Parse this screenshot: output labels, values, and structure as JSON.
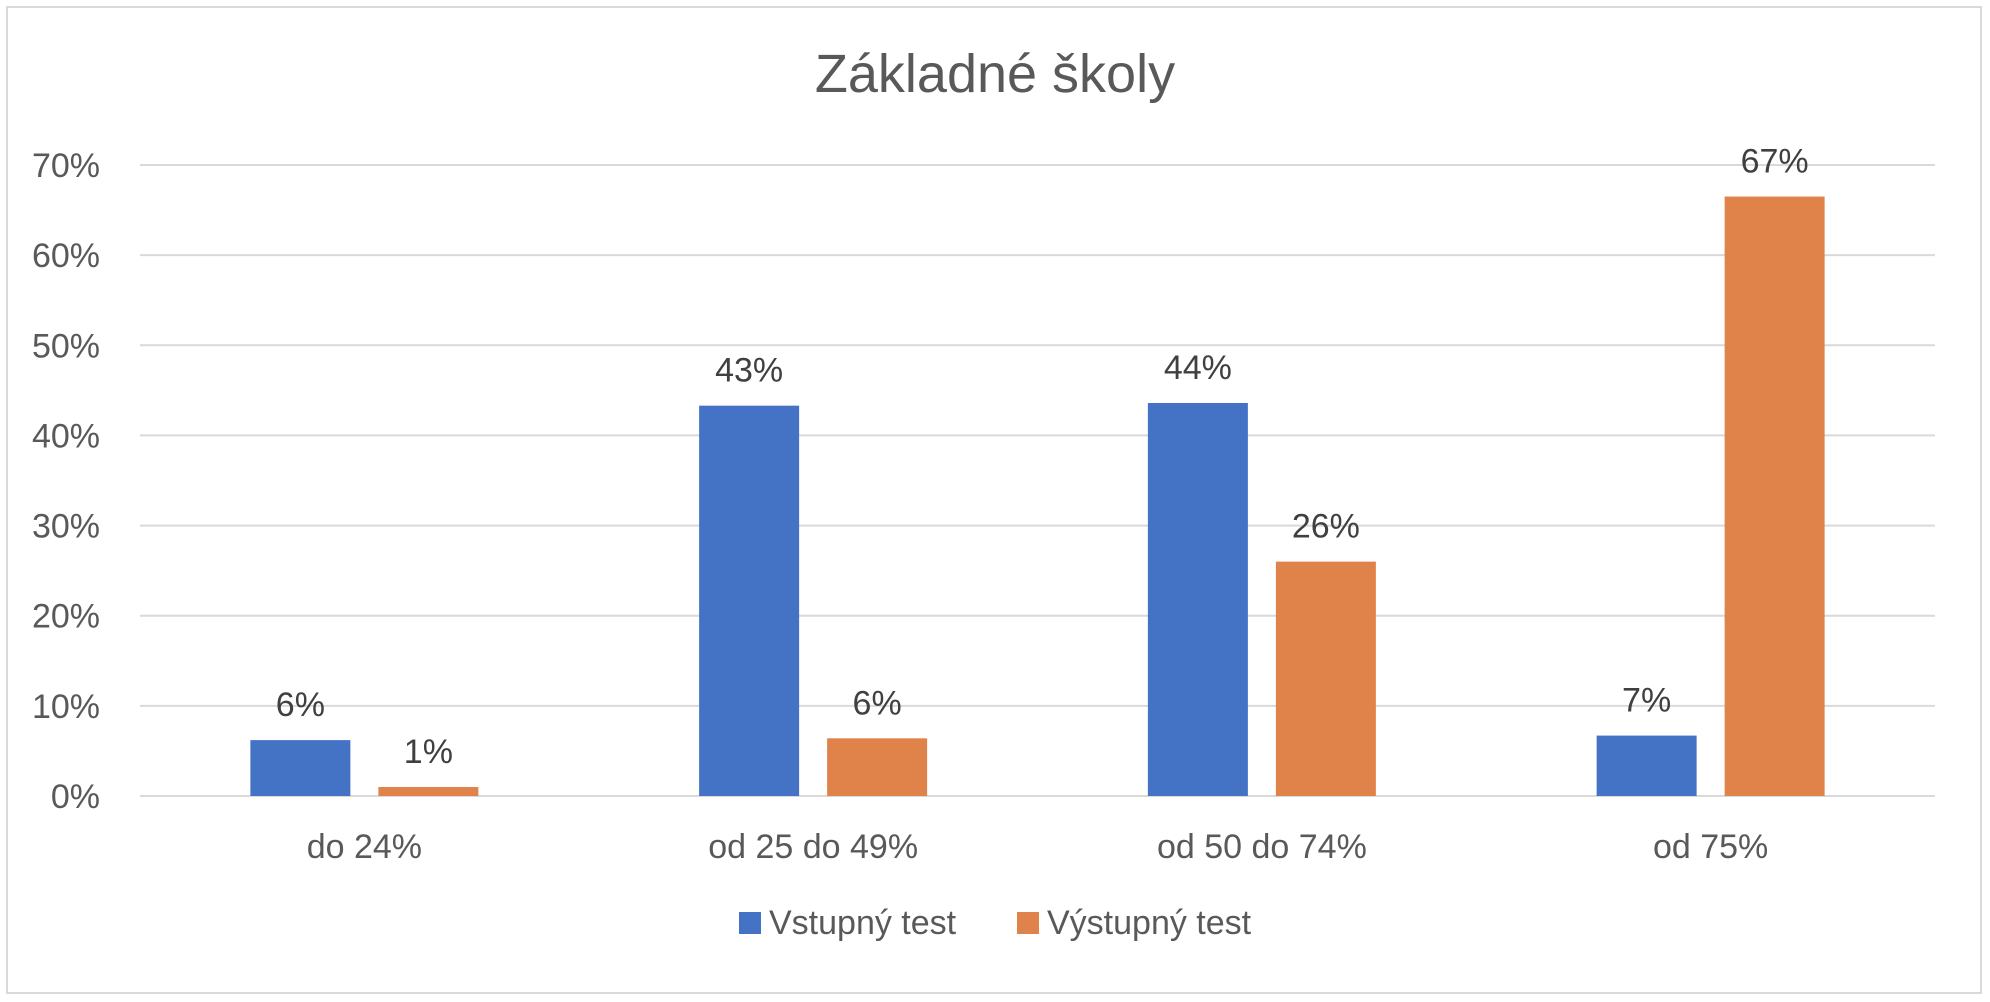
{
  "chart_data": {
    "type": "bar",
    "title": "Základné školy",
    "categories": [
      "do 24%",
      "od 25 do 49%",
      "od 50 do 74%",
      "od 75%"
    ],
    "series": [
      {
        "name": "Vstupný test",
        "color": "#4472c4",
        "values": [
          6.2,
          43.3,
          43.6,
          6.7
        ],
        "labels": [
          "6%",
          "43%",
          "44%",
          "7%"
        ]
      },
      {
        "name": "Výstupný test",
        "color": "#e0834a",
        "values": [
          1.0,
          6.4,
          26.0,
          66.5
        ],
        "labels": [
          "1%",
          "6%",
          "26%",
          "67%"
        ]
      }
    ],
    "ylim": [
      0,
      70
    ],
    "yticks": [
      0,
      10,
      20,
      30,
      40,
      50,
      60,
      70
    ],
    "ytick_labels": [
      "0%",
      "10%",
      "20%",
      "30%",
      "40%",
      "50%",
      "60%",
      "70%"
    ],
    "grid": true,
    "legend_position": "bottom",
    "gridline_color": "#d9d9d9"
  }
}
